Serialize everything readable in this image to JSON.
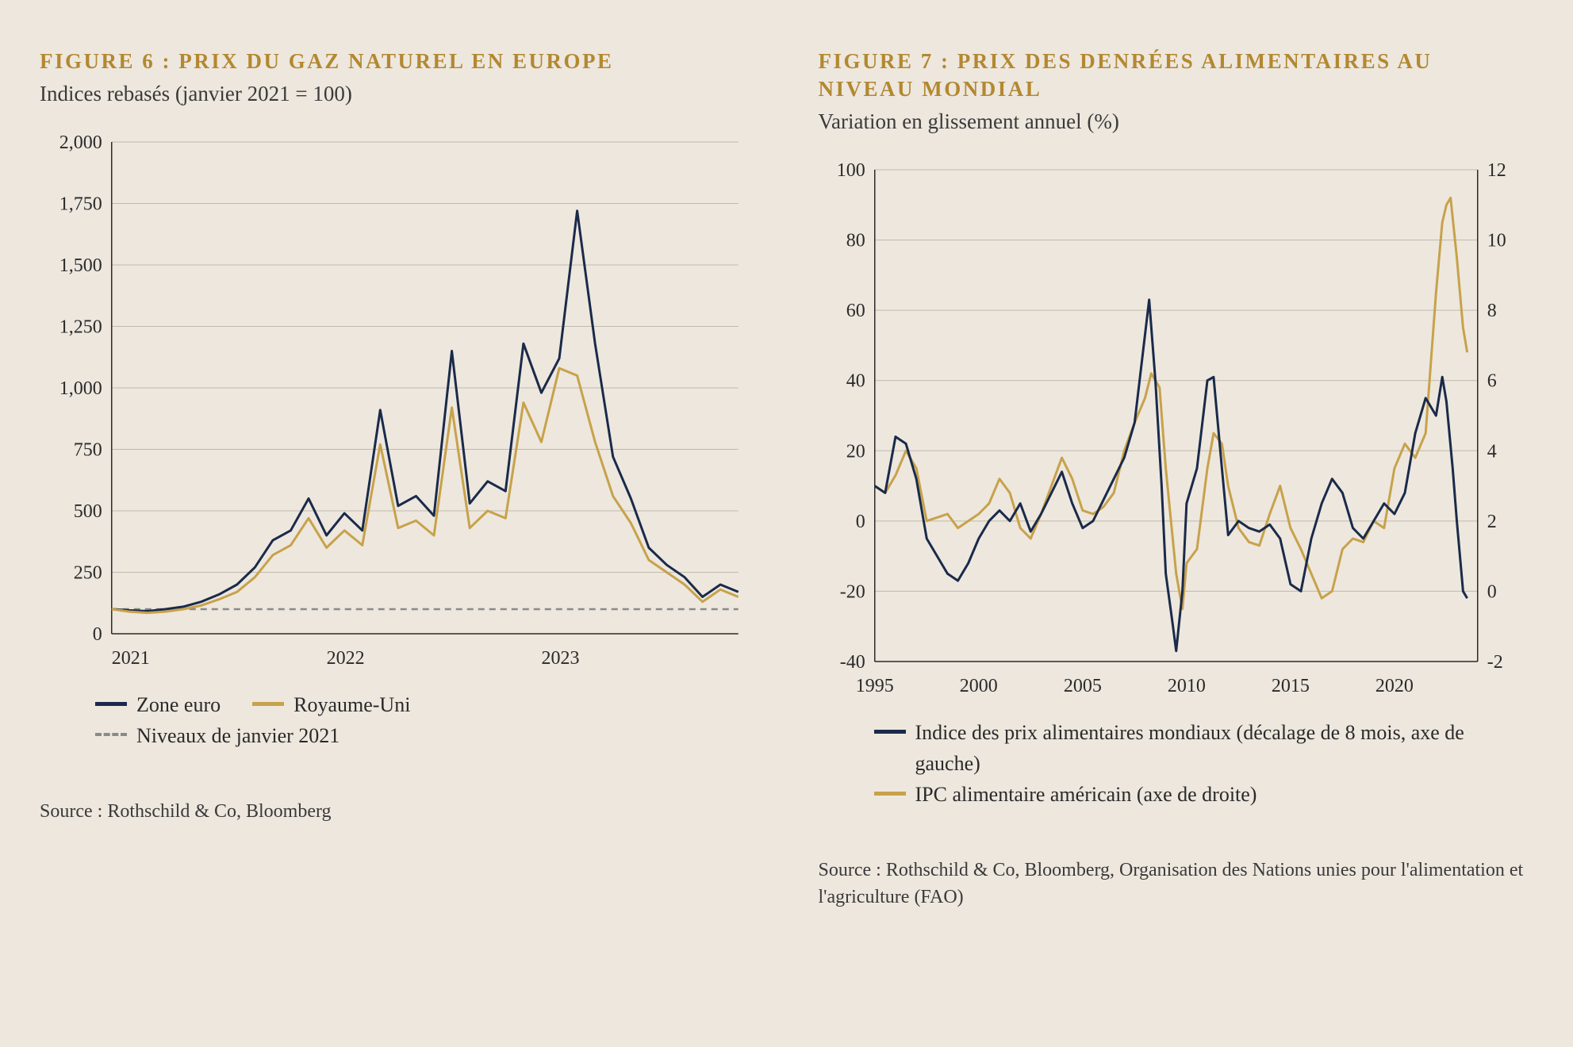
{
  "colors": {
    "background": "#ede7de",
    "title": "#b38830",
    "text": "#2a2a2a",
    "navy": "#1a2a4a",
    "gold": "#c7a24a",
    "grid": "#bfb9ad",
    "dash": "#8a8a8a"
  },
  "figure6": {
    "title": "FIGURE 6 : PRIX DU GAZ NATUREL EN EUROPE",
    "subtitle": "Indices rebasés (janvier 2021 = 100)",
    "type": "line",
    "ylim": [
      0,
      2000
    ],
    "ytick_step": 250,
    "yticks": [
      0,
      250,
      500,
      750,
      1000,
      1250,
      1500,
      1750,
      2000
    ],
    "xticks": [
      "2021",
      "2022",
      "2023"
    ],
    "xrange_months": 30,
    "reference_line": 100,
    "line_width": 3,
    "series": [
      {
        "name": "Zone euro",
        "color": "#1a2a4a",
        "data": [
          100,
          95,
          92,
          100,
          110,
          130,
          160,
          200,
          270,
          380,
          420,
          550,
          400,
          490,
          420,
          910,
          520,
          560,
          480,
          1150,
          530,
          620,
          580,
          1180,
          980,
          1120,
          1720,
          1180,
          720,
          550,
          350,
          280,
          230,
          150,
          200,
          170
        ]
      },
      {
        "name": "Royaume-Uni",
        "color": "#c7a24a",
        "data": [
          100,
          90,
          85,
          90,
          100,
          115,
          140,
          170,
          230,
          320,
          360,
          470,
          350,
          420,
          360,
          770,
          430,
          460,
          400,
          920,
          430,
          500,
          470,
          940,
          780,
          1080,
          1050,
          780,
          560,
          450,
          300,
          250,
          200,
          130,
          180,
          150
        ]
      }
    ],
    "reference_legend": "Niveaux de janvier 2021",
    "legend_labels": [
      "Zone euro",
      "Royaume-Uni"
    ],
    "source": "Source : Rothschild & Co, Bloomberg"
  },
  "figure7": {
    "title": "FIGURE 7 : PRIX DES DENRÉES ALIMENTAIRES AU NIVEAU MONDIAL",
    "subtitle": "Variation en glissement annuel (%)",
    "type": "line_dual_axis",
    "y1lim": [
      -40,
      100
    ],
    "y1ticks": [
      -40,
      -20,
      0,
      20,
      40,
      60,
      80,
      100
    ],
    "y2lim": [
      -2,
      12
    ],
    "y2ticks": [
      -2,
      0,
      2,
      4,
      6,
      8,
      10,
      12
    ],
    "xlim": [
      1995,
      2024
    ],
    "xticks": [
      1995,
      2000,
      2005,
      2010,
      2015,
      2020
    ],
    "line_width": 3,
    "series_left": {
      "name": "Indice des prix alimentaires mondiaux (décalage de 8 mois, axe de gauche)",
      "color": "#1a2a4a",
      "data": [
        [
          1995,
          10
        ],
        [
          1995.5,
          8
        ],
        [
          1996,
          24
        ],
        [
          1996.5,
          22
        ],
        [
          1997,
          12
        ],
        [
          1997.5,
          -5
        ],
        [
          1998,
          -10
        ],
        [
          1998.5,
          -15
        ],
        [
          1999,
          -17
        ],
        [
          1999.5,
          -12
        ],
        [
          2000,
          -5
        ],
        [
          2000.5,
          0
        ],
        [
          2001,
          3
        ],
        [
          2001.5,
          0
        ],
        [
          2002,
          5
        ],
        [
          2002.5,
          -3
        ],
        [
          2003,
          2
        ],
        [
          2003.5,
          8
        ],
        [
          2004,
          14
        ],
        [
          2004.5,
          5
        ],
        [
          2005,
          -2
        ],
        [
          2005.5,
          0
        ],
        [
          2006,
          6
        ],
        [
          2006.5,
          12
        ],
        [
          2007,
          18
        ],
        [
          2007.5,
          28
        ],
        [
          2008,
          53
        ],
        [
          2008.2,
          63
        ],
        [
          2008.5,
          40
        ],
        [
          2008.8,
          10
        ],
        [
          2009,
          -15
        ],
        [
          2009.3,
          -28
        ],
        [
          2009.5,
          -37
        ],
        [
          2009.8,
          -20
        ],
        [
          2010,
          5
        ],
        [
          2010.5,
          15
        ],
        [
          2011,
          40
        ],
        [
          2011.3,
          41
        ],
        [
          2011.7,
          15
        ],
        [
          2012,
          -4
        ],
        [
          2012.5,
          0
        ],
        [
          2013,
          -2
        ],
        [
          2013.5,
          -3
        ],
        [
          2014,
          -1
        ],
        [
          2014.5,
          -5
        ],
        [
          2015,
          -18
        ],
        [
          2015.5,
          -20
        ],
        [
          2016,
          -5
        ],
        [
          2016.5,
          5
        ],
        [
          2017,
          12
        ],
        [
          2017.5,
          8
        ],
        [
          2018,
          -2
        ],
        [
          2018.5,
          -5
        ],
        [
          2019,
          0
        ],
        [
          2019.5,
          5
        ],
        [
          2020,
          2
        ],
        [
          2020.5,
          8
        ],
        [
          2021,
          25
        ],
        [
          2021.5,
          35
        ],
        [
          2022,
          30
        ],
        [
          2022.3,
          41
        ],
        [
          2022.5,
          34
        ],
        [
          2022.8,
          15
        ],
        [
          2023,
          0
        ],
        [
          2023.3,
          -20
        ],
        [
          2023.5,
          -22
        ]
      ]
    },
    "series_right": {
      "name": "IPC alimentaire américain (axe de droite)",
      "color": "#c7a24a",
      "data": [
        [
          1995,
          3.0
        ],
        [
          1995.5,
          2.8
        ],
        [
          1996,
          3.3
        ],
        [
          1996.5,
          4.0
        ],
        [
          1997,
          3.5
        ],
        [
          1997.5,
          2.0
        ],
        [
          1998,
          2.1
        ],
        [
          1998.5,
          2.2
        ],
        [
          1999,
          1.8
        ],
        [
          1999.5,
          2.0
        ],
        [
          2000,
          2.2
        ],
        [
          2000.5,
          2.5
        ],
        [
          2001,
          3.2
        ],
        [
          2001.5,
          2.8
        ],
        [
          2002,
          1.8
        ],
        [
          2002.5,
          1.5
        ],
        [
          2003,
          2.2
        ],
        [
          2003.5,
          3.0
        ],
        [
          2004,
          3.8
        ],
        [
          2004.5,
          3.2
        ],
        [
          2005,
          2.3
        ],
        [
          2005.5,
          2.2
        ],
        [
          2006,
          2.4
        ],
        [
          2006.5,
          2.8
        ],
        [
          2007,
          4.0
        ],
        [
          2007.5,
          4.8
        ],
        [
          2008,
          5.5
        ],
        [
          2008.3,
          6.2
        ],
        [
          2008.7,
          5.8
        ],
        [
          2009,
          3.5
        ],
        [
          2009.5,
          0.5
        ],
        [
          2009.8,
          -0.5
        ],
        [
          2010,
          0.8
        ],
        [
          2010.5,
          1.2
        ],
        [
          2011,
          3.5
        ],
        [
          2011.3,
          4.5
        ],
        [
          2011.7,
          4.2
        ],
        [
          2012,
          3.0
        ],
        [
          2012.5,
          1.8
        ],
        [
          2013,
          1.4
        ],
        [
          2013.5,
          1.3
        ],
        [
          2014,
          2.2
        ],
        [
          2014.5,
          3.0
        ],
        [
          2015,
          1.8
        ],
        [
          2015.5,
          1.2
        ],
        [
          2016,
          0.5
        ],
        [
          2016.5,
          -0.2
        ],
        [
          2017,
          0.0
        ],
        [
          2017.5,
          1.2
        ],
        [
          2018,
          1.5
        ],
        [
          2018.5,
          1.4
        ],
        [
          2019,
          2.0
        ],
        [
          2019.5,
          1.8
        ],
        [
          2020,
          3.5
        ],
        [
          2020.5,
          4.2
        ],
        [
          2021,
          3.8
        ],
        [
          2021.5,
          4.5
        ],
        [
          2022,
          8.5
        ],
        [
          2022.3,
          10.5
        ],
        [
          2022.5,
          11.0
        ],
        [
          2022.7,
          11.2
        ],
        [
          2023,
          9.5
        ],
        [
          2023.3,
          7.5
        ],
        [
          2023.5,
          6.8
        ]
      ]
    },
    "legend_labels": [
      "Indice des prix alimentaires mondiaux\n(décalage de 8 mois, axe de gauche)",
      "IPC alimentaire américain (axe de droite)"
    ],
    "source": "Source : Rothschild & Co, Bloomberg, Organisation des Nations unies pour l'alimentation et l'agriculture (FAO)"
  }
}
